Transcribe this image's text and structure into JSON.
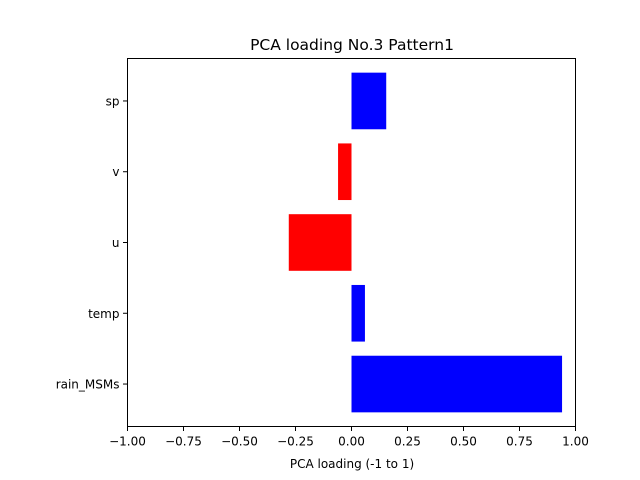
{
  "chart_data": {
    "type": "bar",
    "orientation": "horizontal",
    "title": "PCA loading No.3 Pattern1",
    "xlabel": "PCA loading (-1 to 1)",
    "ylabel": "",
    "xlim": [
      -1.0,
      1.0
    ],
    "x_ticks": [
      "−1.00",
      "−0.75",
      "−0.50",
      "−0.25",
      "0.00",
      "0.25",
      "0.50",
      "0.75",
      "1.00"
    ],
    "x_tick_values": [
      -1.0,
      -0.75,
      -0.5,
      -0.25,
      0.0,
      0.25,
      0.5,
      0.75,
      1.0
    ],
    "categories": [
      "rain_MSMs",
      "temp",
      "u",
      "v",
      "sp"
    ],
    "values": [
      0.94,
      0.06,
      -0.28,
      -0.06,
      0.155
    ],
    "colors": {
      "positive": "#0000ff",
      "negative": "#ff0000"
    },
    "grid": false
  }
}
